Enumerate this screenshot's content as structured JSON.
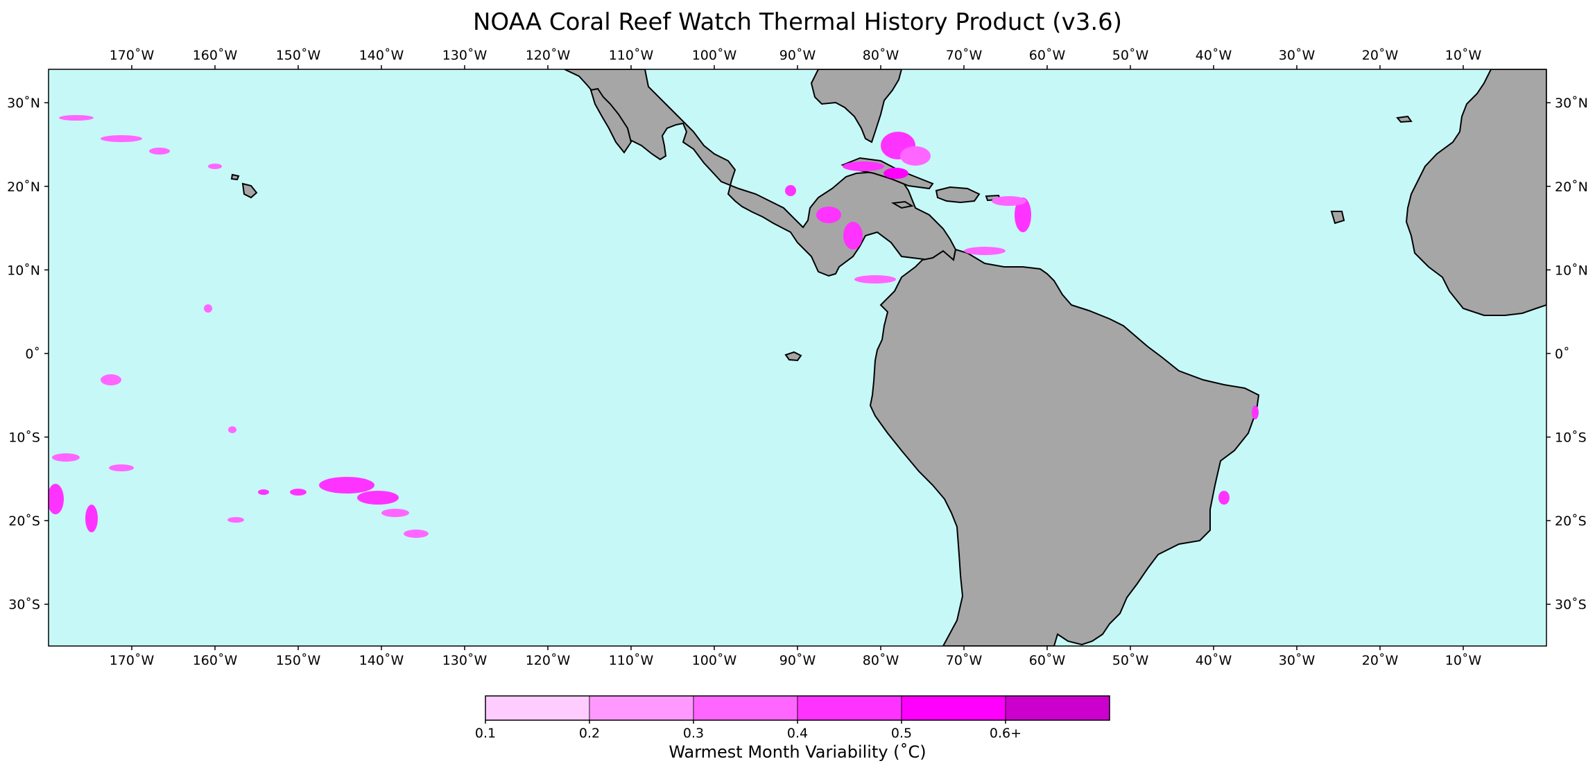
{
  "title": "NOAA Coral Reef Watch Thermal History Product (v3.6)",
  "map": {
    "projection": "equirectangular",
    "lon_range": [
      -180,
      0
    ],
    "lat_range": [
      -35,
      34
    ],
    "ocean_color": "#c6f8f8",
    "land_color": "#a6a6a6",
    "coastline_color": "#000000",
    "lon_ticks": [
      {
        "value": -170,
        "label": "170˚W"
      },
      {
        "value": -160,
        "label": "160˚W"
      },
      {
        "value": -150,
        "label": "150˚W"
      },
      {
        "value": -140,
        "label": "140˚W"
      },
      {
        "value": -130,
        "label": "130˚W"
      },
      {
        "value": -120,
        "label": "120˚W"
      },
      {
        "value": -110,
        "label": "110˚W"
      },
      {
        "value": -100,
        "label": "100˚W"
      },
      {
        "value": -90,
        "label": "90˚W"
      },
      {
        "value": -80,
        "label": "80˚W"
      },
      {
        "value": -70,
        "label": "70˚W"
      },
      {
        "value": -60,
        "label": "60˚W"
      },
      {
        "value": -50,
        "label": "50˚W"
      },
      {
        "value": -40,
        "label": "40˚W"
      },
      {
        "value": -30,
        "label": "30˚W"
      },
      {
        "value": -20,
        "label": "20˚W"
      },
      {
        "value": -10,
        "label": "10˚W"
      }
    ],
    "lat_ticks": [
      {
        "value": 30,
        "label": "30˚N"
      },
      {
        "value": 20,
        "label": "20˚N"
      },
      {
        "value": 10,
        "label": "10˚N"
      },
      {
        "value": 0,
        "label": "0˚"
      },
      {
        "value": -10,
        "label": "10˚S"
      },
      {
        "value": -20,
        "label": "20˚S"
      },
      {
        "value": -30,
        "label": "30˚S"
      }
    ]
  },
  "colorbar": {
    "label": "Warmest Month Variability (˚C)",
    "bins": [
      {
        "color": "#ffccff"
      },
      {
        "color": "#ff99ff"
      },
      {
        "color": "#ff66ff"
      },
      {
        "color": "#ff33ff"
      },
      {
        "color": "#ff00ff"
      },
      {
        "color": "#cc00cc"
      }
    ],
    "tick_labels": [
      "0.1",
      "0.2",
      "0.3",
      "0.4",
      "0.5",
      "0.6+"
    ]
  }
}
